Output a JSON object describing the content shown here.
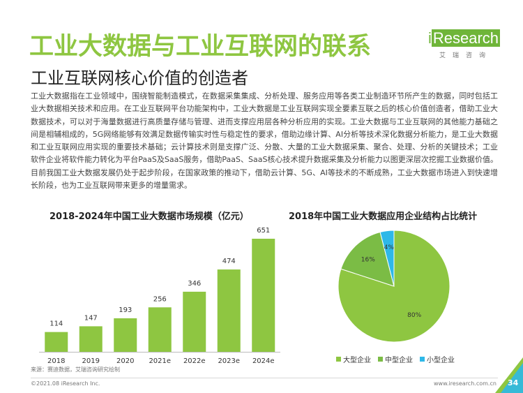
{
  "header": {
    "title": "工业大数据与工业互联网的联系",
    "subtitle": "工业互联网核心价值的创造者"
  },
  "logo": {
    "main_i": "i",
    "main_rest": "Research",
    "sub": "艾瑞咨询"
  },
  "body_text": "工业大数据指在工业领域中，围绕智能制造模式，在数据采集集成、分析处理、服务应用等各类工业制造环节所产生的数据，同时包括工业大数据相关技术和应用。在工业互联网平台功能架构中，工业大数据是工业互联网实现全要素互联之后的核心价值创造者，借助工业大数据技术，可以对于海量数据进行高质量存储与管理、进而支撑应用层各种分析应用的实现。工业大数据与工业互联网的其他能力基础之间是相辅相成的，5G网络能够有效满足数据传输实时性与稳定性的要求，借助边缘计算、AI分析等技术深化数据分析能力，是工业大数据和工业互联网应用实现的重要技术基础；云计算技术则是支撑广泛、分散、大量的工业大数据采集、聚合、处理、分析的关键技术；工业软件企业将软件能力转化为平台PaaS及SaaS服务，借助PaaS、SaaS核心技术提升数据采集及分析能力以图更深层次挖掘工业数据价值。目前我国工业大数据发展仍处于起步阶段，在国家政策的推动下，借助云计算、5G、AI等技术的不断成熟，工业大数据市场进入到快速增长阶段，也为工业互联网带来更多的增量需求。",
  "chart_data": [
    {
      "type": "bar",
      "title": "2018-2024年中国工业大数据市场规模（亿元）",
      "categories": [
        "2018",
        "2019",
        "2020",
        "2021e",
        "2022e",
        "2023e",
        "2024e"
      ],
      "values": [
        114,
        147,
        193,
        256,
        346,
        474,
        651
      ],
      "ylim": [
        0,
        651
      ],
      "color": "#8ec641",
      "grid": false,
      "source": "来源：赛迪数据，艾瑞咨询研究绘制"
    },
    {
      "type": "pie",
      "title": "2018年中国工业大数据应用企业结构占比统计",
      "labels": [
        "大型企业",
        "中型企业",
        "小型企业"
      ],
      "values": [
        80,
        16,
        4
      ],
      "value_labels": [
        "80%",
        "16%",
        "4%"
      ],
      "colors": [
        "#8ec641",
        "#7bbc45",
        "#2eb8e8"
      ],
      "legend": "bottom"
    }
  ],
  "footer": {
    "copyright": "©2021.08 iResearch Inc.",
    "site": "www.iresearch.com.cn",
    "page": "34"
  }
}
